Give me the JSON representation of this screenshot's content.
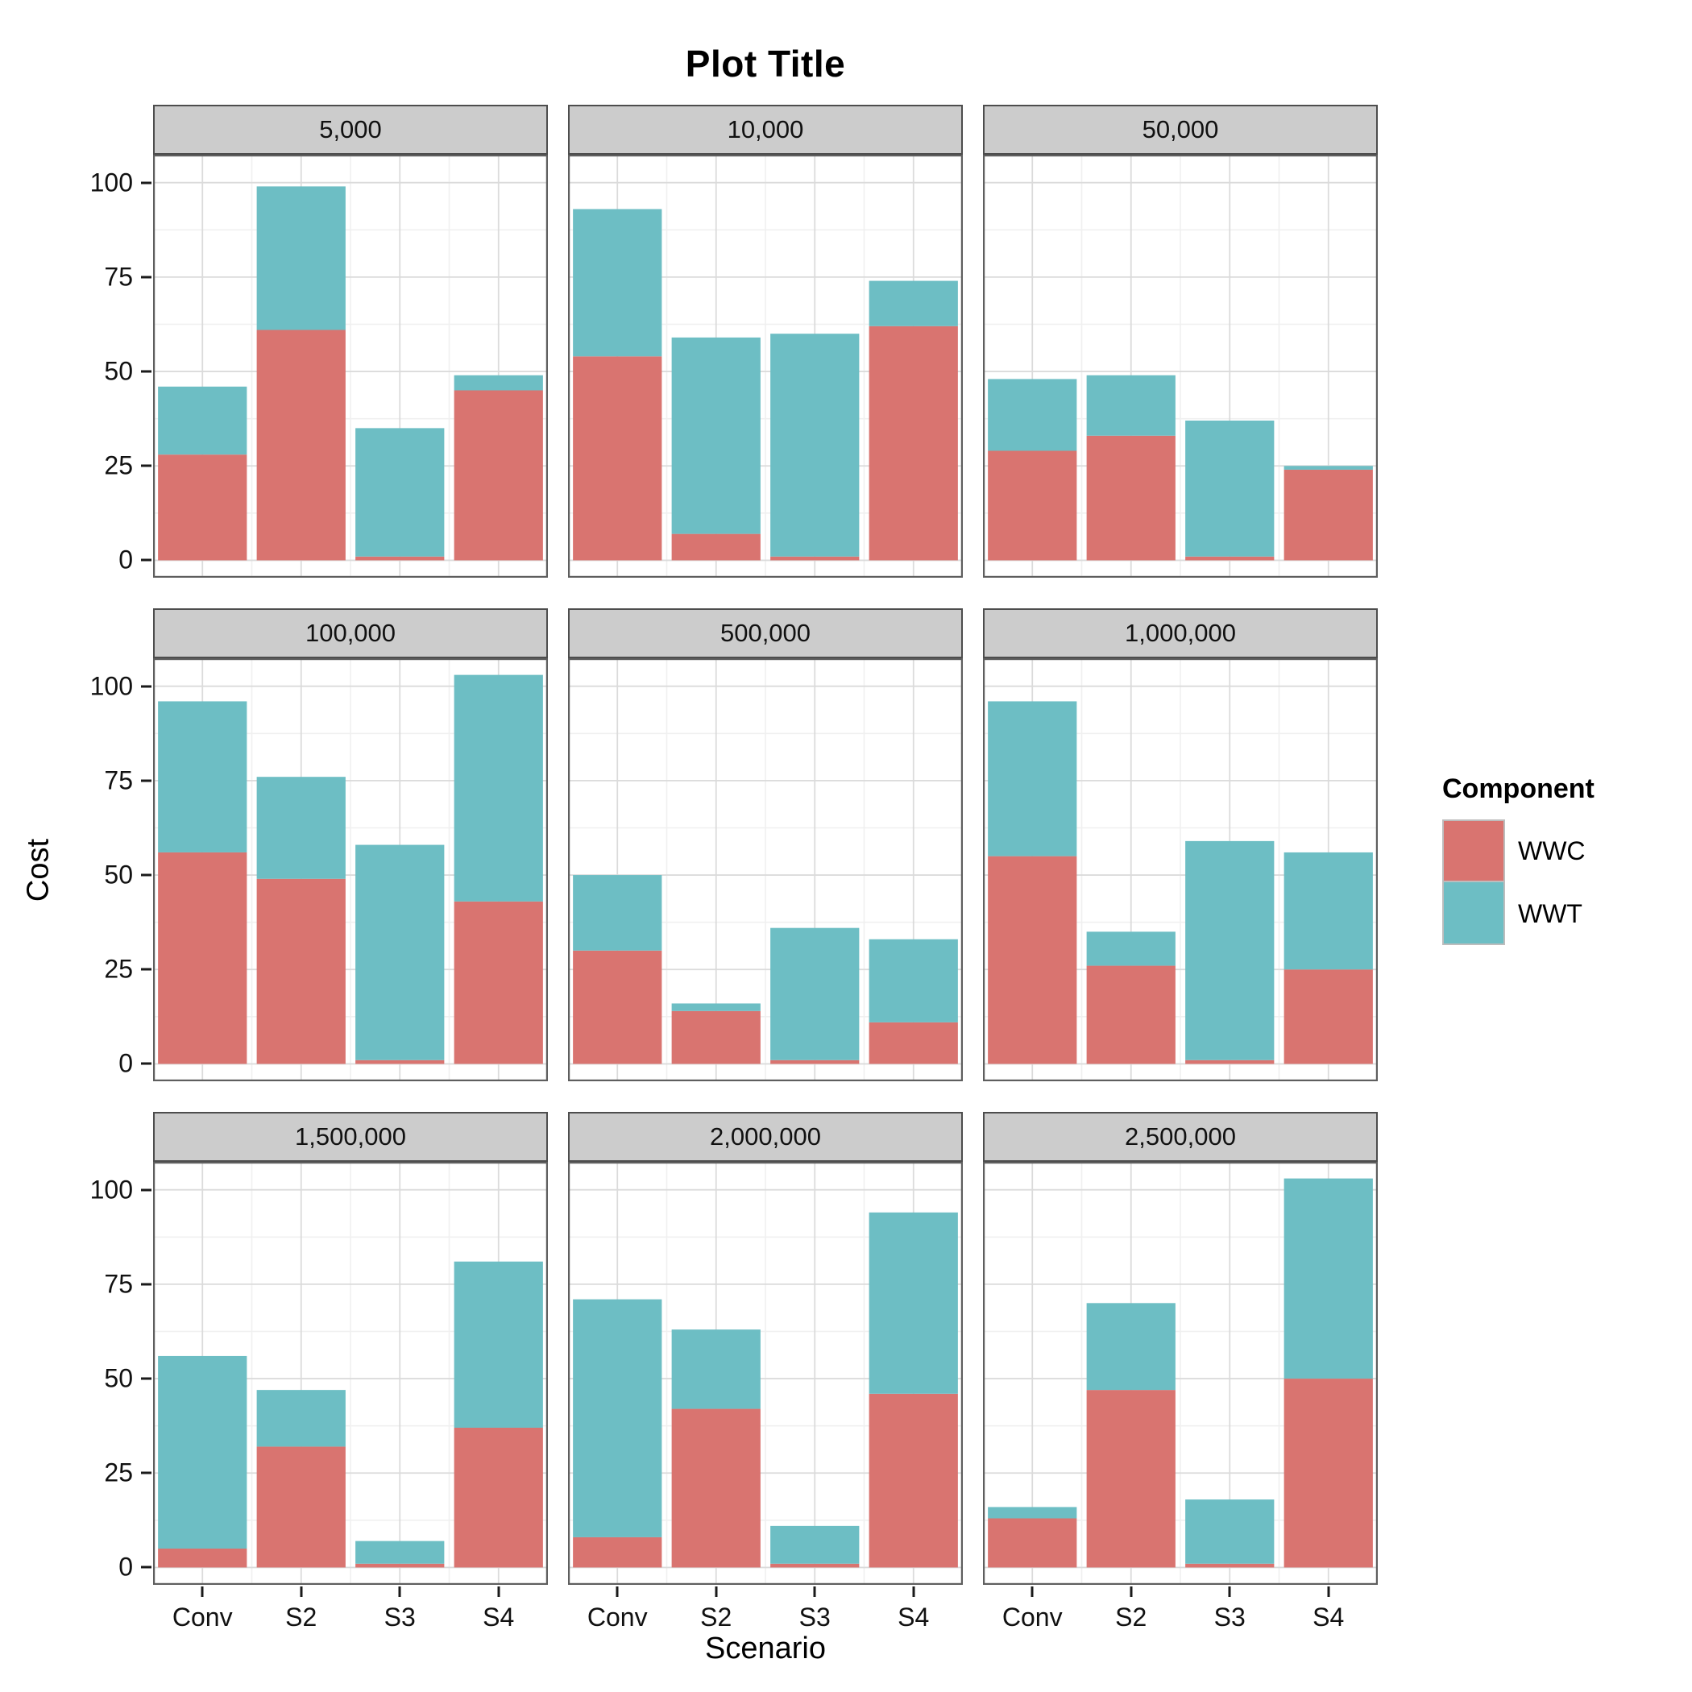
{
  "title": "Plot Title",
  "axes": {
    "y_label": "Cost",
    "x_label": "Scenario",
    "y_ticks": [
      0,
      25,
      50,
      75,
      100
    ],
    "x_ticks": [
      "Conv",
      "S2",
      "S3",
      "S4"
    ]
  },
  "legend": {
    "title": "Component",
    "items": [
      {
        "label": "WWC",
        "color": "#D97470"
      },
      {
        "label": "WWT",
        "color": "#6DBEC4"
      }
    ]
  },
  "colors": {
    "wwc": "#D97470",
    "wwt": "#6DBEC4",
    "strip_bg": "#CCCCCC",
    "strip_border": "#4D4D4D",
    "panel_border": "#5E5E5E",
    "grid_major": "#DBDBDB",
    "grid_minor": "#F0F0F0",
    "tick": "#1a1a1a"
  },
  "chart_data": {
    "type": "bar",
    "stacked": true,
    "title": "Plot Title",
    "xlabel": "Scenario",
    "ylabel": "Cost",
    "ylim": [
      0,
      100
    ],
    "y_major_gridlines": [
      0,
      25,
      50,
      75,
      100
    ],
    "y_minor_gridlines": [
      12.5,
      37.5,
      62.5,
      87.5
    ],
    "legend_position": "right",
    "categories": [
      "Conv",
      "S2",
      "S3",
      "S4"
    ],
    "series_names": [
      "WWC",
      "WWT"
    ],
    "facets": [
      {
        "label": "5,000",
        "series": [
          {
            "name": "WWC",
            "values": [
              28,
              61,
              1,
              45
            ]
          },
          {
            "name": "WWT",
            "values": [
              18,
              38,
              34,
              4
            ]
          }
        ]
      },
      {
        "label": "10,000",
        "series": [
          {
            "name": "WWC",
            "values": [
              54,
              7,
              1,
              62
            ]
          },
          {
            "name": "WWT",
            "values": [
              39,
              52,
              59,
              12
            ]
          }
        ]
      },
      {
        "label": "50,000",
        "series": [
          {
            "name": "WWC",
            "values": [
              29,
              33,
              1,
              24
            ]
          },
          {
            "name": "WWT",
            "values": [
              19,
              16,
              36,
              1
            ]
          }
        ]
      },
      {
        "label": "100,000",
        "series": [
          {
            "name": "WWC",
            "values": [
              56,
              49,
              1,
              43
            ]
          },
          {
            "name": "WWT",
            "values": [
              40,
              27,
              57,
              60
            ]
          }
        ]
      },
      {
        "label": "500,000",
        "series": [
          {
            "name": "WWC",
            "values": [
              30,
              14,
              1,
              11
            ]
          },
          {
            "name": "WWT",
            "values": [
              20,
              2,
              35,
              22
            ]
          }
        ]
      },
      {
        "label": "1,000,000",
        "series": [
          {
            "name": "WWC",
            "values": [
              55,
              26,
              1,
              25
            ]
          },
          {
            "name": "WWT",
            "values": [
              41,
              9,
              58,
              31
            ]
          }
        ]
      },
      {
        "label": "1,500,000",
        "series": [
          {
            "name": "WWC",
            "values": [
              5,
              32,
              1,
              37
            ]
          },
          {
            "name": "WWT",
            "values": [
              51,
              15,
              6,
              44
            ]
          }
        ]
      },
      {
        "label": "2,000,000",
        "series": [
          {
            "name": "WWC",
            "values": [
              8,
              42,
              1,
              46
            ]
          },
          {
            "name": "WWT",
            "values": [
              63,
              21,
              10,
              48
            ]
          }
        ]
      },
      {
        "label": "2,500,000",
        "series": [
          {
            "name": "WWC",
            "values": [
              13,
              47,
              1,
              50
            ]
          },
          {
            "name": "WWT",
            "values": [
              3,
              23,
              17,
              53
            ]
          }
        ]
      }
    ]
  }
}
